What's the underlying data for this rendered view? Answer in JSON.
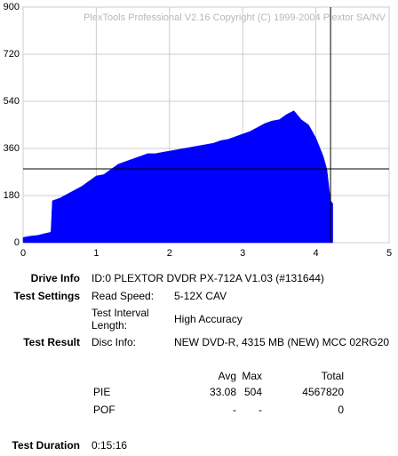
{
  "chart_data": {
    "type": "area",
    "watermark": "PlexTools Professional V2.16 Copyright (C) 1999-2004 Plextor SA/NV",
    "x": [
      0,
      0.1,
      0.2,
      0.3,
      0.38,
      0.4,
      0.5,
      0.6,
      0.7,
      0.8,
      0.9,
      1.0,
      1.1,
      1.2,
      1.3,
      1.4,
      1.5,
      1.6,
      1.7,
      1.8,
      1.9,
      2.0,
      2.1,
      2.2,
      2.3,
      2.4,
      2.5,
      2.6,
      2.7,
      2.8,
      2.9,
      3.0,
      3.1,
      3.2,
      3.3,
      3.4,
      3.5,
      3.6,
      3.7,
      3.8,
      3.9,
      4.0,
      4.1,
      4.15,
      4.2,
      4.23
    ],
    "series": [
      {
        "name": "PIE",
        "color": "#0000ff",
        "values": [
          20,
          25,
          28,
          35,
          40,
          160,
          170,
          185,
          200,
          215,
          235,
          255,
          260,
          280,
          300,
          310,
          320,
          330,
          340,
          340,
          345,
          350,
          355,
          360,
          365,
          370,
          375,
          380,
          390,
          395,
          405,
          415,
          425,
          440,
          455,
          465,
          470,
          490,
          504,
          470,
          450,
          400,
          330,
          280,
          160,
          150
        ]
      }
    ],
    "xlim": [
      0,
      5
    ],
    "xticks": [
      0,
      1,
      2,
      3,
      4,
      5
    ],
    "ylim": [
      0,
      900
    ],
    "yticks": [
      0,
      180,
      360,
      540,
      720,
      900
    ],
    "grid": true,
    "cursor": {
      "x": 4.2,
      "y": 282
    }
  },
  "report": {
    "drive_info": {
      "label": "Drive Info",
      "value": "ID:0 PLEXTOR DVDR PX-712A V1.03 (#131644)"
    },
    "test_settings": {
      "label": "Test Settings",
      "items": [
        {
          "label": "Read Speed:",
          "value": "5-12X CAV"
        },
        {
          "label": "Test Interval Length:",
          "value": "High Accuracy"
        }
      ]
    },
    "test_result": {
      "label": "Test Result",
      "items": [
        {
          "label": "Disc Info:",
          "value": "NEW DVD-R, 4315 MB (NEW) MCC 02RG20"
        }
      ]
    },
    "table": {
      "columns": [
        "Avg",
        "Max",
        "Total"
      ],
      "rows": [
        {
          "name": "PIE",
          "values": [
            "33.08",
            "504",
            "4567820"
          ]
        },
        {
          "name": "POF",
          "values": [
            "-",
            "-",
            "0"
          ]
        }
      ]
    },
    "test_duration": {
      "label": "Test Duration",
      "value": "0:15:16"
    }
  }
}
